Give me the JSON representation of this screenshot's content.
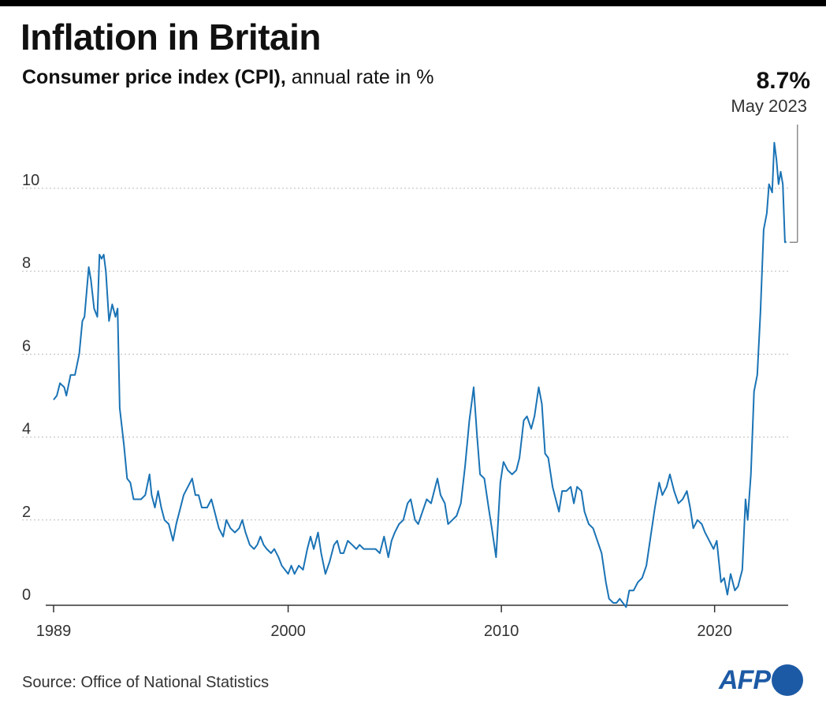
{
  "title": "Inflation in Britain",
  "subtitle_bold": "Consumer price index (CPI),",
  "subtitle_rest": " annual rate in %",
  "callout": {
    "value": "8.7%",
    "date": "May 2023"
  },
  "source": "Source: Office of National Statistics",
  "logo_text": "AFP",
  "colors": {
    "line": "#1a73b5",
    "grid": "#bbbbbb",
    "axis": "#333333",
    "logo": "#1d5aa5"
  },
  "chart_data": {
    "type": "line",
    "title": "Inflation in Britain",
    "subtitle": "Consumer price index (CPI), annual rate in %",
    "xlabel": "",
    "ylabel": "",
    "xlim": [
      1989.0,
      2023.45
    ],
    "ylim": [
      0,
      11.5
    ],
    "x_ticks": [
      {
        "value": 1989,
        "label": "1989"
      },
      {
        "value": 2000,
        "label": "2000"
      },
      {
        "value": 2010,
        "label": "2010"
      },
      {
        "value": 2020,
        "label": "2020"
      }
    ],
    "y_ticks": [
      {
        "value": 0,
        "label": "0"
      },
      {
        "value": 2,
        "label": "2"
      },
      {
        "value": 4,
        "label": "4"
      },
      {
        "value": 6,
        "label": "6"
      },
      {
        "value": 8,
        "label": "8"
      },
      {
        "value": 10,
        "label": "10"
      }
    ],
    "grid": "horizontal dotted",
    "series": [
      {
        "points": [
          [
            1989.0,
            4.9
          ],
          [
            1989.15,
            5.0
          ],
          [
            1989.3,
            5.3
          ],
          [
            1989.5,
            5.2
          ],
          [
            1989.6,
            5.0
          ],
          [
            1989.8,
            5.5
          ],
          [
            1990.0,
            5.5
          ],
          [
            1990.2,
            6.0
          ],
          [
            1990.35,
            6.8
          ],
          [
            1990.45,
            6.9
          ],
          [
            1990.55,
            7.5
          ],
          [
            1990.65,
            8.1
          ],
          [
            1990.75,
            7.8
          ],
          [
            1990.9,
            7.1
          ],
          [
            1991.05,
            6.9
          ],
          [
            1991.15,
            8.4
          ],
          [
            1991.25,
            8.3
          ],
          [
            1991.35,
            8.4
          ],
          [
            1991.45,
            8.0
          ],
          [
            1991.6,
            6.8
          ],
          [
            1991.75,
            7.2
          ],
          [
            1991.9,
            6.9
          ],
          [
            1992.0,
            7.1
          ],
          [
            1992.1,
            4.7
          ],
          [
            1992.3,
            3.8
          ],
          [
            1992.45,
            3.0
          ],
          [
            1992.6,
            2.9
          ],
          [
            1992.75,
            2.5
          ],
          [
            1992.9,
            2.5
          ],
          [
            1993.1,
            2.5
          ],
          [
            1993.3,
            2.6
          ],
          [
            1993.5,
            3.1
          ],
          [
            1993.6,
            2.6
          ],
          [
            1993.75,
            2.3
          ],
          [
            1993.9,
            2.7
          ],
          [
            1994.05,
            2.3
          ],
          [
            1994.2,
            2.0
          ],
          [
            1994.4,
            1.9
          ],
          [
            1994.6,
            1.5
          ],
          [
            1994.75,
            1.9
          ],
          [
            1994.95,
            2.3
          ],
          [
            1995.1,
            2.6
          ],
          [
            1995.3,
            2.8
          ],
          [
            1995.5,
            3.0
          ],
          [
            1995.65,
            2.6
          ],
          [
            1995.8,
            2.6
          ],
          [
            1995.95,
            2.3
          ],
          [
            1996.2,
            2.3
          ],
          [
            1996.4,
            2.5
          ],
          [
            1996.55,
            2.2
          ],
          [
            1996.75,
            1.8
          ],
          [
            1996.95,
            1.6
          ],
          [
            1997.1,
            2.0
          ],
          [
            1997.3,
            1.8
          ],
          [
            1997.5,
            1.7
          ],
          [
            1997.7,
            1.8
          ],
          [
            1997.85,
            2.0
          ],
          [
            1998.0,
            1.7
          ],
          [
            1998.2,
            1.4
          ],
          [
            1998.4,
            1.3
          ],
          [
            1998.55,
            1.4
          ],
          [
            1998.7,
            1.6
          ],
          [
            1998.85,
            1.4
          ],
          [
            1999.0,
            1.3
          ],
          [
            1999.2,
            1.2
          ],
          [
            1999.35,
            1.3
          ],
          [
            1999.55,
            1.1
          ],
          [
            1999.7,
            0.9
          ],
          [
            1999.85,
            0.8
          ],
          [
            2000.0,
            0.7
          ],
          [
            2000.15,
            0.9
          ],
          [
            2000.3,
            0.7
          ],
          [
            2000.5,
            0.9
          ],
          [
            2000.7,
            0.8
          ],
          [
            2000.9,
            1.3
          ],
          [
            2001.05,
            1.6
          ],
          [
            2001.2,
            1.3
          ],
          [
            2001.4,
            1.7
          ],
          [
            2001.55,
            1.2
          ],
          [
            2001.75,
            0.7
          ],
          [
            2001.95,
            1.0
          ],
          [
            2002.15,
            1.4
          ],
          [
            2002.3,
            1.5
          ],
          [
            2002.45,
            1.2
          ],
          [
            2002.6,
            1.2
          ],
          [
            2002.8,
            1.5
          ],
          [
            2003.0,
            1.4
          ],
          [
            2003.2,
            1.3
          ],
          [
            2003.35,
            1.4
          ],
          [
            2003.55,
            1.3
          ],
          [
            2003.7,
            1.3
          ],
          [
            2003.9,
            1.3
          ],
          [
            2004.1,
            1.3
          ],
          [
            2004.3,
            1.2
          ],
          [
            2004.5,
            1.6
          ],
          [
            2004.7,
            1.1
          ],
          [
            2004.85,
            1.5
          ],
          [
            2005.0,
            1.7
          ],
          [
            2005.2,
            1.9
          ],
          [
            2005.4,
            2.0
          ],
          [
            2005.6,
            2.4
          ],
          [
            2005.75,
            2.5
          ],
          [
            2005.95,
            2.0
          ],
          [
            2006.1,
            1.9
          ],
          [
            2006.3,
            2.2
          ],
          [
            2006.5,
            2.5
          ],
          [
            2006.7,
            2.4
          ],
          [
            2006.85,
            2.7
          ],
          [
            2007.0,
            3.0
          ],
          [
            2007.15,
            2.6
          ],
          [
            2007.35,
            2.4
          ],
          [
            2007.5,
            1.9
          ],
          [
            2007.7,
            2.0
          ],
          [
            2007.9,
            2.1
          ],
          [
            2008.1,
            2.4
          ],
          [
            2008.3,
            3.3
          ],
          [
            2008.5,
            4.4
          ],
          [
            2008.7,
            5.2
          ],
          [
            2008.85,
            4.1
          ],
          [
            2009.0,
            3.1
          ],
          [
            2009.2,
            3.0
          ],
          [
            2009.4,
            2.3
          ],
          [
            2009.55,
            1.8
          ],
          [
            2009.75,
            1.1
          ],
          [
            2009.95,
            2.9
          ],
          [
            2010.1,
            3.4
          ],
          [
            2010.3,
            3.2
          ],
          [
            2010.5,
            3.1
          ],
          [
            2010.7,
            3.2
          ],
          [
            2010.85,
            3.5
          ],
          [
            2011.05,
            4.4
          ],
          [
            2011.2,
            4.5
          ],
          [
            2011.4,
            4.2
          ],
          [
            2011.55,
            4.5
          ],
          [
            2011.75,
            5.2
          ],
          [
            2011.9,
            4.8
          ],
          [
            2012.05,
            3.6
          ],
          [
            2012.2,
            3.5
          ],
          [
            2012.4,
            2.8
          ],
          [
            2012.55,
            2.5
          ],
          [
            2012.7,
            2.2
          ],
          [
            2012.85,
            2.7
          ],
          [
            2013.05,
            2.7
          ],
          [
            2013.25,
            2.8
          ],
          [
            2013.4,
            2.4
          ],
          [
            2013.55,
            2.8
          ],
          [
            2013.75,
            2.7
          ],
          [
            2013.9,
            2.2
          ],
          [
            2014.1,
            1.9
          ],
          [
            2014.3,
            1.8
          ],
          [
            2014.5,
            1.5
          ],
          [
            2014.7,
            1.2
          ],
          [
            2014.9,
            0.5
          ],
          [
            2015.05,
            0.1
          ],
          [
            2015.25,
            0.0
          ],
          [
            2015.4,
            0.0
          ],
          [
            2015.55,
            0.1
          ],
          [
            2015.7,
            0.0
          ],
          [
            2015.85,
            -0.1
          ],
          [
            2016.0,
            0.3
          ],
          [
            2016.2,
            0.3
          ],
          [
            2016.4,
            0.5
          ],
          [
            2016.6,
            0.6
          ],
          [
            2016.8,
            0.9
          ],
          [
            2017.0,
            1.6
          ],
          [
            2017.2,
            2.3
          ],
          [
            2017.4,
            2.9
          ],
          [
            2017.55,
            2.6
          ],
          [
            2017.75,
            2.8
          ],
          [
            2017.9,
            3.1
          ],
          [
            2018.1,
            2.7
          ],
          [
            2018.3,
            2.4
          ],
          [
            2018.5,
            2.5
          ],
          [
            2018.7,
            2.7
          ],
          [
            2018.85,
            2.3
          ],
          [
            2019.0,
            1.8
          ],
          [
            2019.2,
            2.0
          ],
          [
            2019.4,
            1.9
          ],
          [
            2019.55,
            1.7
          ],
          [
            2019.75,
            1.5
          ],
          [
            2019.95,
            1.3
          ],
          [
            2020.1,
            1.5
          ],
          [
            2020.3,
            0.5
          ],
          [
            2020.45,
            0.6
          ],
          [
            2020.6,
            0.2
          ],
          [
            2020.75,
            0.7
          ],
          [
            2020.95,
            0.3
          ],
          [
            2021.1,
            0.4
          ],
          [
            2021.3,
            0.8
          ],
          [
            2021.45,
            2.5
          ],
          [
            2021.55,
            2.0
          ],
          [
            2021.7,
            3.1
          ],
          [
            2021.85,
            5.1
          ],
          [
            2022.0,
            5.5
          ],
          [
            2022.15,
            7.0
          ],
          [
            2022.3,
            9.0
          ],
          [
            2022.45,
            9.4
          ],
          [
            2022.55,
            10.1
          ],
          [
            2022.7,
            9.9
          ],
          [
            2022.8,
            11.1
          ],
          [
            2022.9,
            10.7
          ],
          [
            2023.0,
            10.1
          ],
          [
            2023.1,
            10.4
          ],
          [
            2023.2,
            10.1
          ],
          [
            2023.3,
            8.7
          ],
          [
            2023.37,
            8.7
          ]
        ]
      }
    ],
    "annotation": {
      "text": "8.7%",
      "subtext": "May 2023",
      "x": 2023.37,
      "y": 8.7
    }
  }
}
